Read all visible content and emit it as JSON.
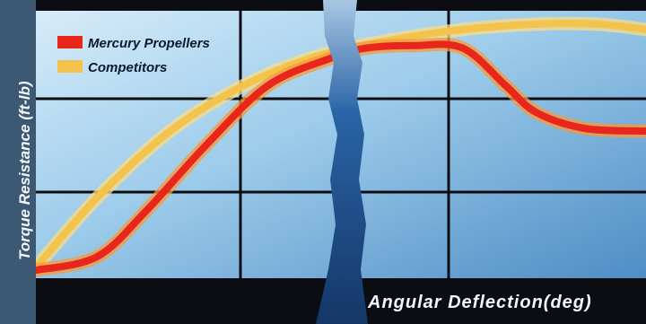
{
  "chart_data": {
    "type": "line",
    "title": "",
    "xlabel": "Angular Deflection(deg)",
    "ylabel": "Torque Resistance (ft-lb)",
    "xlim": [
      0,
      100
    ],
    "ylim": [
      0,
      100
    ],
    "grid": true,
    "legend_position": "top-left",
    "series": [
      {
        "name": "Mercury Propellers",
        "color": "#e8261c",
        "points": [
          [
            0,
            3
          ],
          [
            10,
            8
          ],
          [
            18,
            25
          ],
          [
            28,
            50
          ],
          [
            38,
            72
          ],
          [
            48,
            82
          ],
          [
            54,
            86
          ],
          [
            62,
            87
          ],
          [
            70,
            86
          ],
          [
            77,
            72
          ],
          [
            82,
            62
          ],
          [
            90,
            56
          ],
          [
            100,
            55
          ]
        ]
      },
      {
        "name": "Competitors",
        "color": "#f4c34c",
        "points": [
          [
            0,
            4
          ],
          [
            10,
            30
          ],
          [
            22,
            55
          ],
          [
            34,
            72
          ],
          [
            46,
            83
          ],
          [
            58,
            89
          ],
          [
            70,
            93
          ],
          [
            82,
            95
          ],
          [
            92,
            95
          ],
          [
            100,
            93
          ]
        ]
      }
    ]
  },
  "colors": {
    "frame": "#0b0d12",
    "sky_light": "#cfe6f5",
    "sky_mid": "#7fb6de",
    "sky_dark": "#3f7fb5",
    "crack": "#1f4f8f",
    "label_text": "#f2f6fa",
    "legend_text": "#0d1a2e"
  }
}
